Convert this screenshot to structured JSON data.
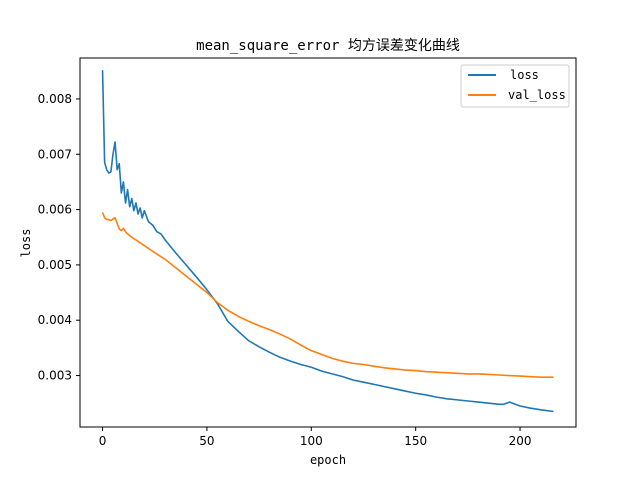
{
  "chart_data": {
    "type": "line",
    "title": "mean_square_error 均方误差变化曲线",
    "xlabel": "epoch",
    "ylabel": "loss",
    "xlim": [
      -10.8,
      226.8
    ],
    "ylim": [
      0.00207,
      0.00874
    ],
    "xticks": [
      0,
      50,
      100,
      150,
      200
    ],
    "xtick_labels": [
      "0",
      "50",
      "100",
      "150",
      "200"
    ],
    "yticks": [
      0.003,
      0.004,
      0.005,
      0.006,
      0.007,
      0.008
    ],
    "ytick_labels": [
      "0.003",
      "0.004",
      "0.005",
      "0.006",
      "0.007",
      "0.008"
    ],
    "grid": false,
    "legend": "top-right",
    "series": [
      {
        "name": "loss",
        "color": "#1f77b4",
        "x": [
          0,
          1,
          2,
          3,
          4,
          5,
          6,
          7,
          8,
          9,
          10,
          11,
          12,
          13,
          14,
          15,
          16,
          17,
          18,
          19,
          20,
          22,
          24,
          26,
          28,
          30,
          35,
          40,
          45,
          50,
          55,
          60,
          65,
          70,
          75,
          80,
          85,
          90,
          95,
          100,
          105,
          110,
          115,
          120,
          125,
          130,
          135,
          140,
          145,
          150,
          155,
          160,
          165,
          170,
          175,
          180,
          185,
          190,
          192,
          195,
          200,
          205,
          210,
          216
        ],
        "values": [
          0.00852,
          0.00685,
          0.00672,
          0.00666,
          0.00668,
          0.007,
          0.00722,
          0.00672,
          0.00683,
          0.0063,
          0.0065,
          0.00612,
          0.00636,
          0.00605,
          0.0062,
          0.00598,
          0.00612,
          0.00592,
          0.00603,
          0.00585,
          0.00598,
          0.00578,
          0.00572,
          0.0056,
          0.00556,
          0.00545,
          0.00522,
          0.005,
          0.00478,
          0.00455,
          0.0043,
          0.00398,
          0.0038,
          0.00363,
          0.00352,
          0.00342,
          0.00333,
          0.00326,
          0.0032,
          0.00315,
          0.00308,
          0.00303,
          0.00298,
          0.00292,
          0.00288,
          0.00284,
          0.0028,
          0.00276,
          0.00272,
          0.00268,
          0.00265,
          0.00261,
          0.00258,
          0.00256,
          0.00254,
          0.00252,
          0.0025,
          0.00248,
          0.00248,
          0.00252,
          0.00245,
          0.00241,
          0.00238,
          0.00235
        ]
      },
      {
        "name": "val_loss",
        "color": "#ff7f0e",
        "x": [
          0,
          1,
          2,
          3,
          4,
          5,
          6,
          7,
          8,
          9,
          10,
          11,
          12,
          14,
          16,
          18,
          20,
          25,
          30,
          35,
          40,
          45,
          50,
          55,
          60,
          65,
          70,
          75,
          80,
          85,
          90,
          95,
          100,
          105,
          110,
          115,
          120,
          125,
          130,
          135,
          140,
          145,
          150,
          155,
          160,
          165,
          170,
          175,
          180,
          185,
          190,
          195,
          200,
          205,
          210,
          216
        ],
        "values": [
          0.00595,
          0.00585,
          0.00582,
          0.00582,
          0.0058,
          0.00583,
          0.00585,
          0.00575,
          0.00565,
          0.00562,
          0.00566,
          0.0056,
          0.00556,
          0.0055,
          0.00545,
          0.0054,
          0.00535,
          0.00522,
          0.0051,
          0.00495,
          0.0048,
          0.00465,
          0.0045,
          0.00432,
          0.00418,
          0.00407,
          0.00398,
          0.0039,
          0.00383,
          0.00375,
          0.00366,
          0.00355,
          0.00345,
          0.00338,
          0.00331,
          0.00326,
          0.00322,
          0.0032,
          0.00317,
          0.00314,
          0.00312,
          0.0031,
          0.00309,
          0.00307,
          0.00306,
          0.00305,
          0.00304,
          0.00303,
          0.00303,
          0.00302,
          0.00301,
          0.003,
          0.00299,
          0.00298,
          0.00297,
          0.00297
        ]
      }
    ]
  }
}
